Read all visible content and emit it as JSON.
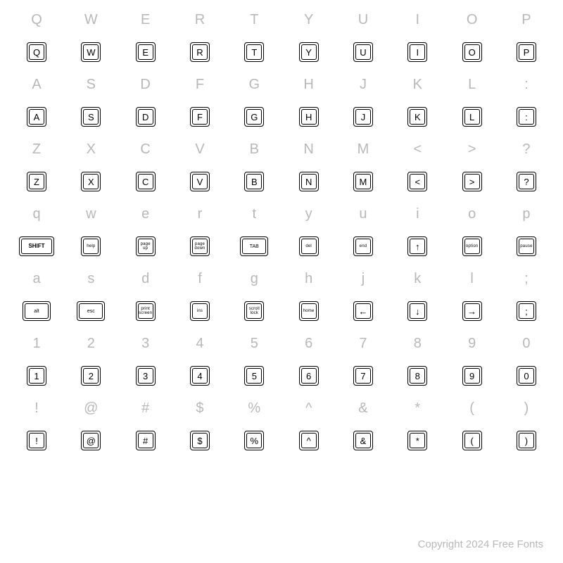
{
  "footer": "Copyright 2024 Free Fonts",
  "styling": {
    "background_color": "#ffffff",
    "label_color": "#b8b8b8",
    "label_fontsize": 20,
    "key_border_color": "#000000",
    "key_border_radius": 4,
    "key_sq_size": 28,
    "key_sq_fontsize": 13,
    "key_sm_fontsize": 6,
    "key_md_width": 40,
    "key_wide_width": 50,
    "footer_fontsize": 15,
    "footer_color": "#b8b8b8",
    "columns": 10,
    "rows": 8
  },
  "rows": [
    [
      {
        "label": "Q",
        "key": "Q",
        "size": "sq"
      },
      {
        "label": "W",
        "key": "W",
        "size": "sq"
      },
      {
        "label": "E",
        "key": "E",
        "size": "sq"
      },
      {
        "label": "R",
        "key": "R",
        "size": "sq"
      },
      {
        "label": "T",
        "key": "T",
        "size": "sq"
      },
      {
        "label": "Y",
        "key": "Y",
        "size": "sq"
      },
      {
        "label": "U",
        "key": "U",
        "size": "sq"
      },
      {
        "label": "I",
        "key": "I",
        "size": "sq"
      },
      {
        "label": "O",
        "key": "O",
        "size": "sq"
      },
      {
        "label": "P",
        "key": "P",
        "size": "sq"
      }
    ],
    [
      {
        "label": "A",
        "key": "A",
        "size": "sq"
      },
      {
        "label": "S",
        "key": "S",
        "size": "sq"
      },
      {
        "label": "D",
        "key": "D",
        "size": "sq"
      },
      {
        "label": "F",
        "key": "F",
        "size": "sq"
      },
      {
        "label": "G",
        "key": "G",
        "size": "sq"
      },
      {
        "label": "H",
        "key": "H",
        "size": "sq"
      },
      {
        "label": "J",
        "key": "J",
        "size": "sq"
      },
      {
        "label": "K",
        "key": "K",
        "size": "sq"
      },
      {
        "label": "L",
        "key": "L",
        "size": "sq"
      },
      {
        "label": ":",
        "key": ":",
        "size": "sq"
      }
    ],
    [
      {
        "label": "Z",
        "key": "Z",
        "size": "sq"
      },
      {
        "label": "X",
        "key": "X",
        "size": "sq"
      },
      {
        "label": "C",
        "key": "C",
        "size": "sq"
      },
      {
        "label": "V",
        "key": "V",
        "size": "sq"
      },
      {
        "label": "B",
        "key": "B",
        "size": "sq"
      },
      {
        "label": "N",
        "key": "N",
        "size": "sq"
      },
      {
        "label": "M",
        "key": "M",
        "size": "sq"
      },
      {
        "label": "<",
        "key": "<",
        "size": "sq"
      },
      {
        "label": ">",
        "key": ">",
        "size": "sq"
      },
      {
        "label": "?",
        "key": "?",
        "size": "sq"
      }
    ],
    [
      {
        "label": "q",
        "key": "SHIFT",
        "size": "wide"
      },
      {
        "label": "w",
        "key": "help",
        "size": "sm"
      },
      {
        "label": "e",
        "key": "page up",
        "size": "sm"
      },
      {
        "label": "r",
        "key": "page down",
        "size": "sm"
      },
      {
        "label": "t",
        "key": "TAB",
        "size": "md"
      },
      {
        "label": "y",
        "key": "del",
        "size": "sm"
      },
      {
        "label": "u",
        "key": "end",
        "size": "sm"
      },
      {
        "label": "i",
        "key": "↑",
        "size": "sq"
      },
      {
        "label": "o",
        "key": "option",
        "size": "sm"
      },
      {
        "label": "p",
        "key": "pause",
        "size": "sm"
      }
    ],
    [
      {
        "label": "a",
        "key": "alt",
        "size": "md"
      },
      {
        "label": "s",
        "key": "esc",
        "size": "md"
      },
      {
        "label": "d",
        "key": "print screen",
        "size": "sm"
      },
      {
        "label": "f",
        "key": "ins",
        "size": "sm"
      },
      {
        "label": "g",
        "key": "scroll lock",
        "size": "sm"
      },
      {
        "label": "h",
        "key": "home",
        "size": "sm"
      },
      {
        "label": "j",
        "key": "←",
        "size": "sq"
      },
      {
        "label": "k",
        "key": "↓",
        "size": "sq"
      },
      {
        "label": "l",
        "key": "→",
        "size": "sq"
      },
      {
        "label": ";",
        "key": ";",
        "size": "sq"
      }
    ],
    [
      {
        "label": "1",
        "key": "1",
        "size": "sq"
      },
      {
        "label": "2",
        "key": "2",
        "size": "sq"
      },
      {
        "label": "3",
        "key": "3",
        "size": "sq"
      },
      {
        "label": "4",
        "key": "4",
        "size": "sq"
      },
      {
        "label": "5",
        "key": "5",
        "size": "sq"
      },
      {
        "label": "6",
        "key": "6",
        "size": "sq"
      },
      {
        "label": "7",
        "key": "7",
        "size": "sq"
      },
      {
        "label": "8",
        "key": "8",
        "size": "sq"
      },
      {
        "label": "9",
        "key": "9",
        "size": "sq"
      },
      {
        "label": "0",
        "key": "0",
        "size": "sq"
      }
    ],
    [
      {
        "label": "!",
        "key": "!",
        "size": "sq"
      },
      {
        "label": "@",
        "key": "@",
        "size": "sq"
      },
      {
        "label": "#",
        "key": "#",
        "size": "sq"
      },
      {
        "label": "$",
        "key": "$",
        "size": "sq"
      },
      {
        "label": "%",
        "key": "%",
        "size": "sq"
      },
      {
        "label": "^",
        "key": "^",
        "size": "sq"
      },
      {
        "label": "&",
        "key": "&",
        "size": "sq"
      },
      {
        "label": "*",
        "key": "*",
        "size": "sq"
      },
      {
        "label": "(",
        "key": "(",
        "size": "sq"
      },
      {
        "label": ")",
        "key": ")",
        "size": "sq"
      }
    ]
  ]
}
